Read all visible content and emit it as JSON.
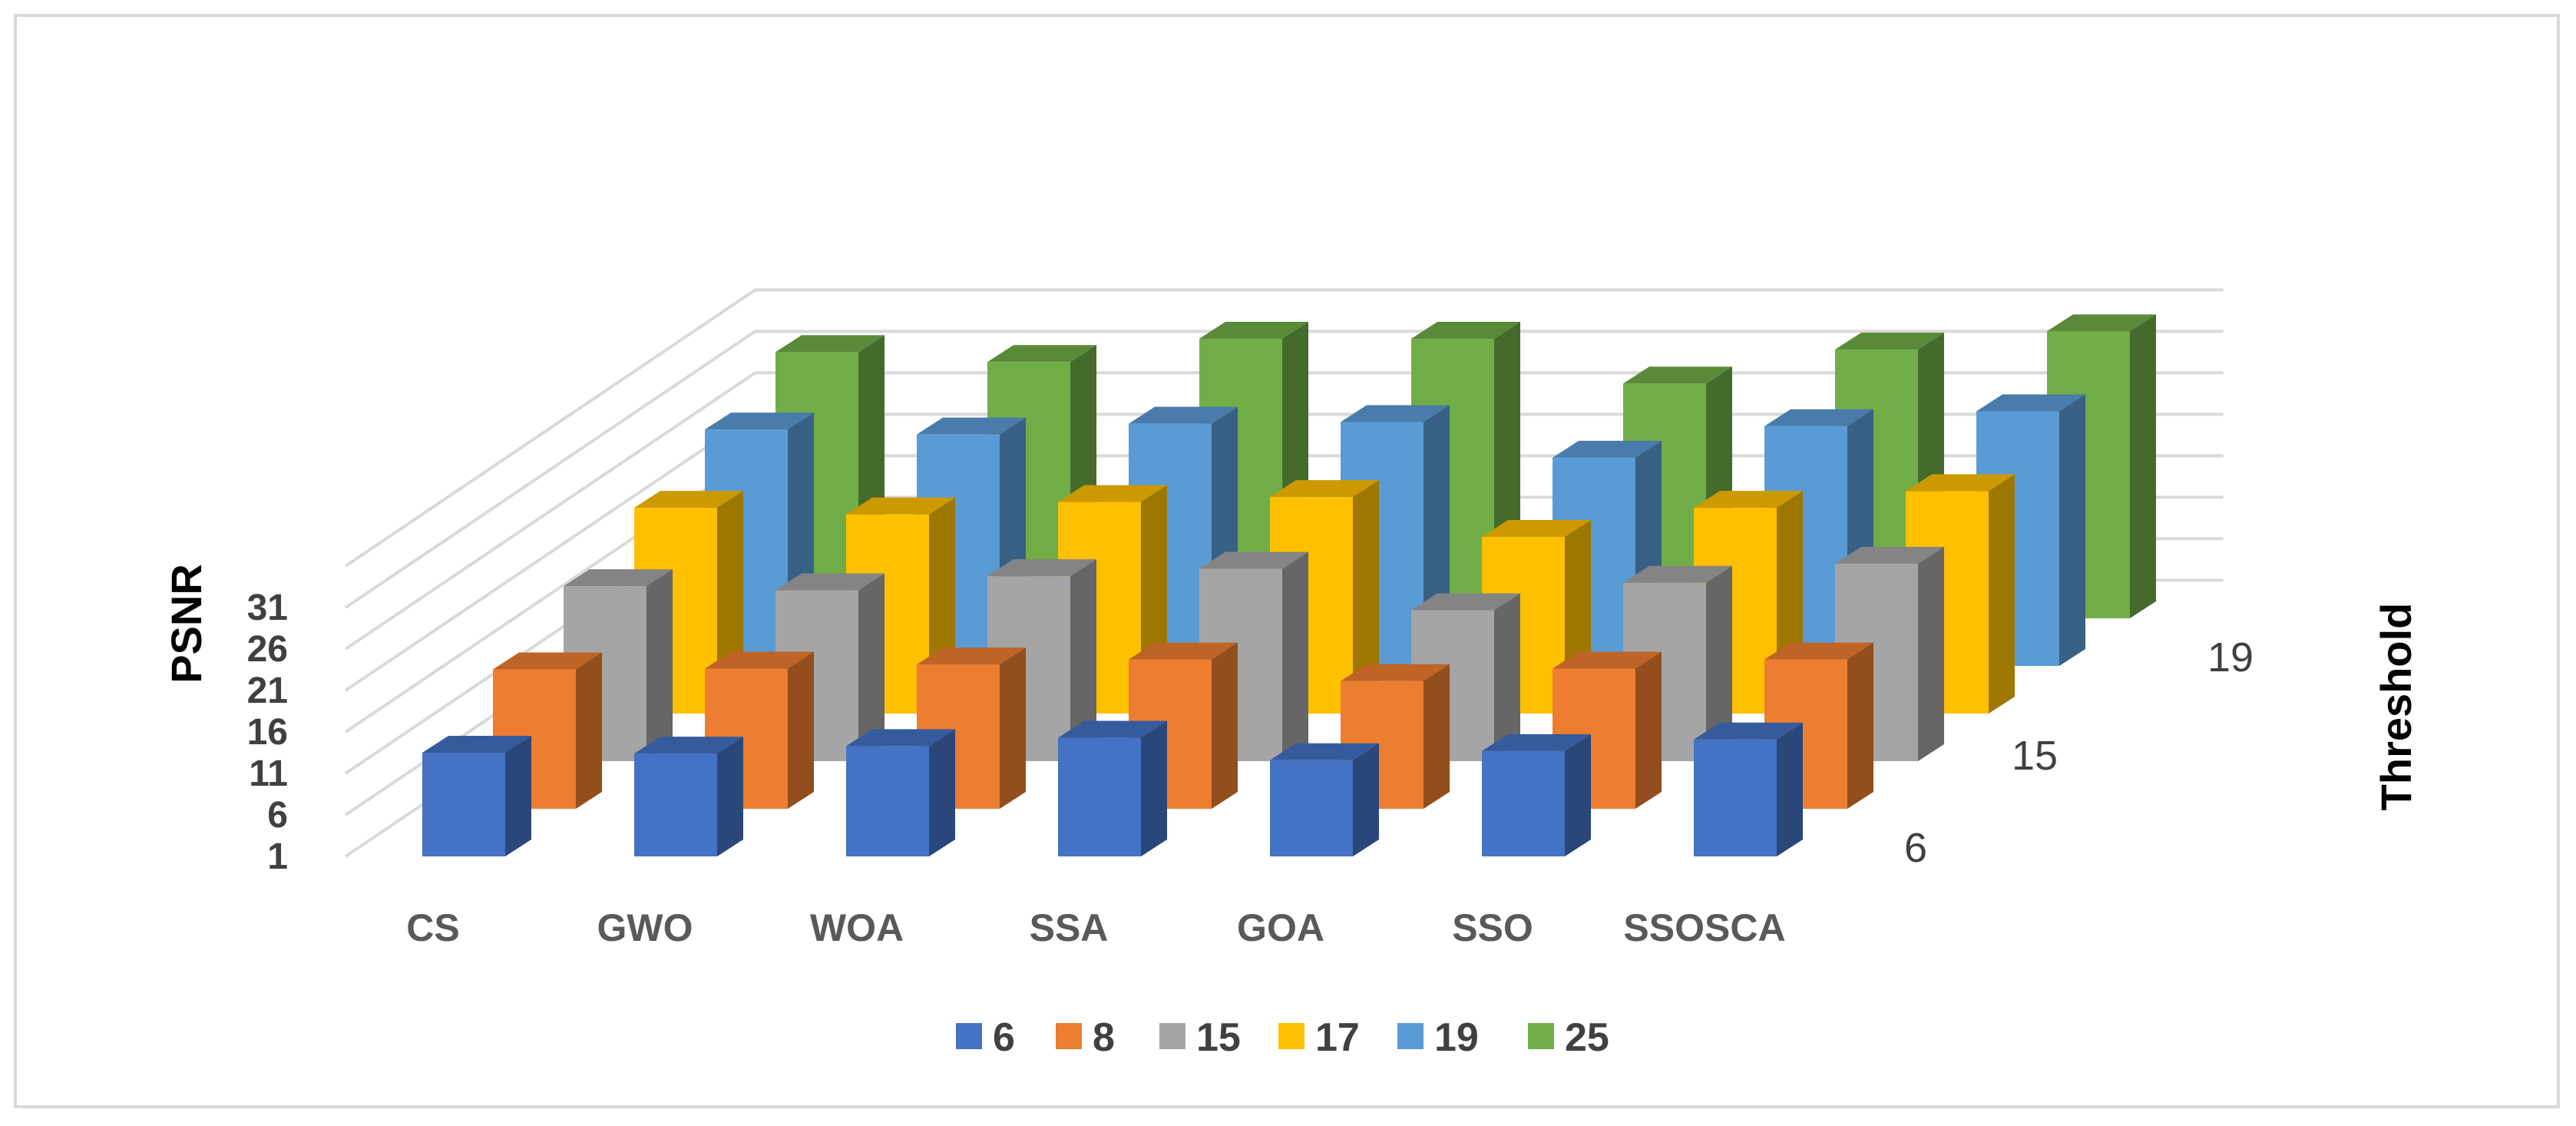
{
  "chart_data": {
    "type": "bar",
    "subtype": "3d-column",
    "title": "",
    "ylabel": "PSNR",
    "zlabel": "Threshold",
    "categories": [
      "CS",
      "GWO",
      "WOA",
      "SSA",
      "GOA",
      "SSO",
      "SSOSCA"
    ],
    "y_ticks": [
      "1",
      "6",
      "11",
      "16",
      "21",
      "26",
      "31"
    ],
    "ylim": [
      1,
      36
    ],
    "depth_labels": [
      "6",
      "15",
      "19"
    ],
    "legend_position": "bottom",
    "series": [
      {
        "name": "6",
        "color": "#4472c4",
        "values": [
          13.5,
          13.4,
          14.3,
          15.3,
          12.6,
          13.7,
          15.1
        ]
      },
      {
        "name": "8",
        "color": "#ed7d31",
        "values": [
          17.8,
          17.9,
          18.4,
          19.0,
          16.4,
          17.9,
          19.0
        ]
      },
      {
        "name": "15",
        "color": "#a5a5a5",
        "values": [
          22.1,
          21.6,
          23.3,
          24.2,
          19.2,
          22.5,
          24.8
        ]
      },
      {
        "name": "17",
        "color": "#ffc000",
        "values": [
          25.8,
          25.0,
          26.5,
          27.1,
          22.3,
          25.8,
          27.8
        ]
      },
      {
        "name": "19",
        "color": "#5b9bd5",
        "values": [
          29.5,
          28.9,
          30.2,
          30.4,
          26.1,
          29.9,
          31.7
        ]
      },
      {
        "name": "25",
        "color": "#70ad47",
        "values": [
          33.1,
          31.9,
          34.7,
          34.7,
          29.3,
          33.4,
          35.6
        ]
      }
    ]
  }
}
